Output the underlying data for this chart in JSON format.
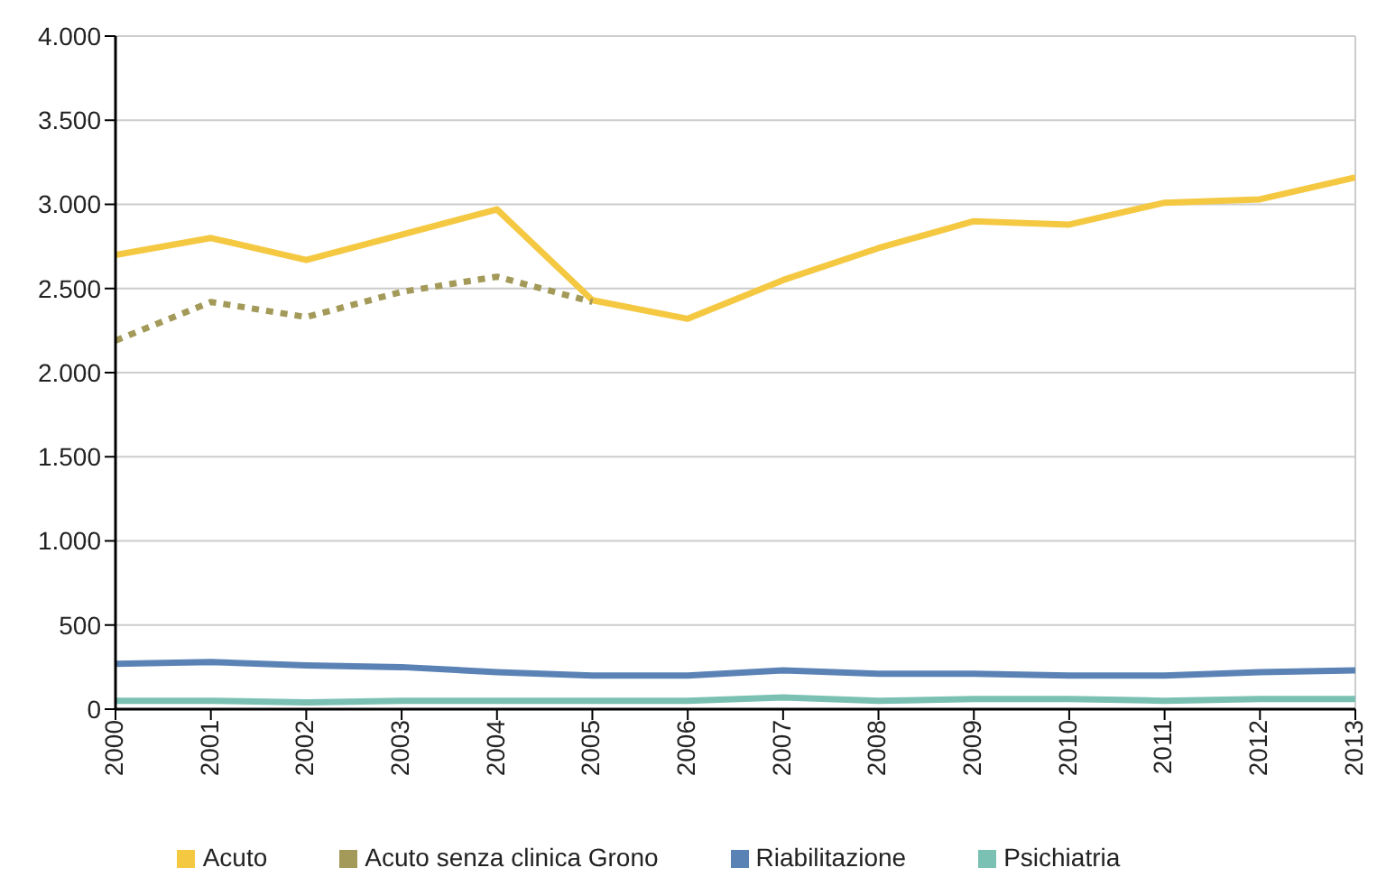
{
  "chart_data": {
    "type": "line",
    "categories": [
      "2000",
      "2001",
      "2002",
      "2003",
      "2004",
      "2005",
      "2006",
      "2007",
      "2008",
      "2009",
      "2010",
      "2011",
      "2012",
      "2013"
    ],
    "series": [
      {
        "name": "Acuto",
        "color": "#f5c842",
        "values": [
          2700,
          2800,
          2670,
          2820,
          2970,
          2430,
          2320,
          2550,
          2740,
          2900,
          2880,
          3010,
          3030,
          3160
        ]
      },
      {
        "name": "Acuto senza clinica Grono",
        "color": "#a39a5a",
        "line_style": "dotted",
        "values": [
          2190,
          2420,
          2330,
          2480,
          2570,
          2420,
          null,
          null,
          null,
          null,
          null,
          null,
          null,
          null
        ]
      },
      {
        "name": "Riabilitazione",
        "color": "#5b82b5",
        "values": [
          270,
          280,
          260,
          250,
          220,
          200,
          200,
          230,
          210,
          210,
          200,
          200,
          220,
          230
        ]
      },
      {
        "name": "Psichiatria",
        "color": "#7bc1b3",
        "values": [
          50,
          50,
          40,
          50,
          50,
          50,
          50,
          70,
          50,
          60,
          60,
          50,
          60,
          60
        ]
      }
    ],
    "ylim": [
      0,
      4000
    ],
    "yticks": [
      {
        "value": 0,
        "label": "0"
      },
      {
        "value": 500,
        "label": "500"
      },
      {
        "value": 1000,
        "label": "1.000"
      },
      {
        "value": 1500,
        "label": "1.500"
      },
      {
        "value": 2000,
        "label": "2.000"
      },
      {
        "value": 2500,
        "label": "2.500"
      },
      {
        "value": 3000,
        "label": "3.000"
      },
      {
        "value": 3500,
        "label": "3.500"
      },
      {
        "value": 4000,
        "label": "4.000"
      }
    ],
    "grid": "y",
    "legend": "bottom",
    "marker": "none",
    "line_style": "solid"
  }
}
